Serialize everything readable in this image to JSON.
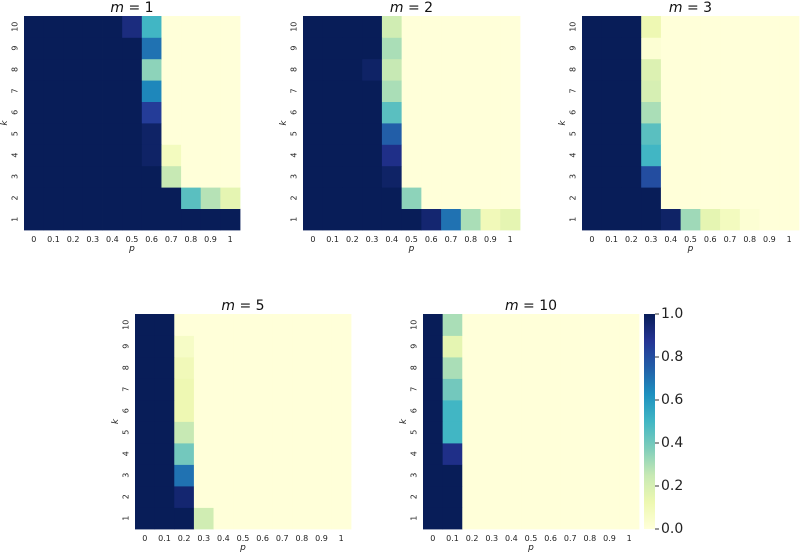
{
  "chart_data": [
    {
      "type": "heatmap",
      "title_var": "m",
      "title_op": " = ",
      "title_value": "1",
      "xlabel": "p",
      "ylabel": "k",
      "x_categories": [
        "0",
        "0.1",
        "0.2",
        "0.3",
        "0.4",
        "0.5",
        "0.6",
        "0.7",
        "0.8",
        "0.9",
        "1"
      ],
      "y_categories": [
        "1",
        "2",
        "3",
        "4",
        "5",
        "6",
        "7",
        "8",
        "9",
        "10"
      ],
      "values": [
        [
          1,
          1,
          1,
          1,
          1,
          1,
          1,
          1,
          1,
          1,
          1
        ],
        [
          1,
          1,
          1,
          1,
          1,
          1,
          1,
          1,
          0.45,
          0.28,
          0.15
        ],
        [
          1,
          1,
          1,
          1,
          1,
          1,
          1,
          0.25,
          0,
          0,
          0
        ],
        [
          1,
          1,
          1,
          1,
          1,
          1,
          0.97,
          0.08,
          0,
          0,
          0
        ],
        [
          1,
          1,
          1,
          1,
          1,
          1,
          0.97,
          0,
          0,
          0,
          0
        ],
        [
          1,
          1,
          1,
          1,
          1,
          1,
          0.85,
          0,
          0,
          0,
          0
        ],
        [
          1,
          1,
          1,
          1,
          1,
          1,
          0.65,
          0,
          0,
          0,
          0
        ],
        [
          1,
          1,
          1,
          1,
          1,
          1,
          0.35,
          0,
          0,
          0,
          0
        ],
        [
          1,
          1,
          1,
          1,
          1,
          1,
          0.7,
          0,
          0,
          0,
          0
        ],
        [
          1,
          1,
          1,
          1,
          1,
          0.92,
          0.5,
          0,
          0,
          0,
          0
        ]
      ]
    },
    {
      "type": "heatmap",
      "title_var": "m",
      "title_op": " = ",
      "title_value": "2",
      "xlabel": "p",
      "ylabel": "k",
      "x_categories": [
        "0",
        "0.1",
        "0.2",
        "0.3",
        "0.4",
        "0.5",
        "0.6",
        "0.7",
        "0.8",
        "0.9",
        "1"
      ],
      "y_categories": [
        "1",
        "2",
        "3",
        "4",
        "5",
        "6",
        "7",
        "8",
        "9",
        "10"
      ],
      "values": [
        [
          1,
          1,
          1,
          1,
          1,
          1,
          0.95,
          0.7,
          0.3,
          0.1,
          0.15
        ],
        [
          1,
          1,
          1,
          1,
          1,
          0.35,
          0,
          0,
          0,
          0,
          0
        ],
        [
          1,
          1,
          1,
          1,
          0.97,
          0,
          0,
          0,
          0,
          0,
          0
        ],
        [
          1,
          1,
          1,
          1,
          0.9,
          0,
          0,
          0,
          0,
          0,
          0
        ],
        [
          1,
          1,
          1,
          1,
          0.75,
          0,
          0,
          0,
          0,
          0,
          0
        ],
        [
          1,
          1,
          1,
          1,
          0.45,
          0,
          0,
          0,
          0,
          0,
          0
        ],
        [
          1,
          1,
          1,
          1,
          0.3,
          0,
          0,
          0,
          0,
          0,
          0
        ],
        [
          1,
          1,
          1,
          0.97,
          0.25,
          0,
          0,
          0,
          0,
          0,
          0
        ],
        [
          1,
          1,
          1,
          1,
          0.3,
          0,
          0,
          0,
          0,
          0,
          0
        ],
        [
          1,
          1,
          1,
          1,
          0.22,
          0,
          0,
          0,
          0,
          0,
          0
        ]
      ]
    },
    {
      "type": "heatmap",
      "title_var": "m",
      "title_op": " = ",
      "title_value": "3",
      "xlabel": "p",
      "ylabel": "k",
      "x_categories": [
        "0",
        "0.1",
        "0.2",
        "0.3",
        "0.4",
        "0.5",
        "0.6",
        "0.7",
        "0.8",
        "0.9",
        "1"
      ],
      "y_categories": [
        "1",
        "2",
        "3",
        "4",
        "5",
        "6",
        "7",
        "8",
        "9",
        "10"
      ],
      "values": [
        [
          1,
          1,
          1,
          1,
          0.97,
          0.32,
          0.15,
          0.08,
          0.02,
          0,
          0
        ],
        [
          1,
          1,
          1,
          1,
          0,
          0,
          0,
          0,
          0,
          0,
          0
        ],
        [
          1,
          1,
          1,
          0.8,
          0,
          0,
          0,
          0,
          0,
          0,
          0
        ],
        [
          1,
          1,
          1,
          0.5,
          0,
          0,
          0,
          0,
          0,
          0,
          0
        ],
        [
          1,
          1,
          1,
          0.45,
          0,
          0,
          0,
          0,
          0,
          0,
          0
        ],
        [
          1,
          1,
          1,
          0.3,
          0,
          0,
          0,
          0,
          0,
          0,
          0
        ],
        [
          1,
          1,
          1,
          0.2,
          0,
          0,
          0,
          0,
          0,
          0,
          0
        ],
        [
          1,
          1,
          1,
          0.18,
          0,
          0,
          0,
          0,
          0,
          0,
          0
        ],
        [
          1,
          1,
          1,
          0.02,
          0,
          0,
          0,
          0,
          0,
          0,
          0
        ],
        [
          1,
          1,
          1,
          0.12,
          0,
          0,
          0,
          0,
          0,
          0,
          0
        ]
      ]
    },
    {
      "type": "heatmap",
      "title_var": "m",
      "title_op": " = ",
      "title_value": "5",
      "xlabel": "p",
      "ylabel": "k",
      "x_categories": [
        "0",
        "0.1",
        "0.2",
        "0.3",
        "0.4",
        "0.5",
        "0.6",
        "0.7",
        "0.8",
        "0.9",
        "1"
      ],
      "y_categories": [
        "1",
        "2",
        "3",
        "4",
        "5",
        "6",
        "7",
        "8",
        "9",
        "10"
      ],
      "values": [
        [
          1,
          1,
          1,
          0.22,
          0,
          0,
          0,
          0,
          0,
          0,
          0
        ],
        [
          1,
          1,
          0.95,
          0,
          0,
          0,
          0,
          0,
          0,
          0,
          0
        ],
        [
          1,
          1,
          0.7,
          0,
          0,
          0,
          0,
          0,
          0,
          0,
          0
        ],
        [
          1,
          1,
          0.4,
          0,
          0,
          0,
          0,
          0,
          0,
          0,
          0
        ],
        [
          1,
          1,
          0.25,
          0,
          0,
          0,
          0,
          0,
          0,
          0,
          0
        ],
        [
          1,
          1,
          0.12,
          0,
          0,
          0,
          0,
          0,
          0,
          0,
          0
        ],
        [
          1,
          1,
          0.12,
          0,
          0,
          0,
          0,
          0,
          0,
          0,
          0
        ],
        [
          1,
          1,
          0.1,
          0,
          0,
          0,
          0,
          0,
          0,
          0,
          0
        ],
        [
          1,
          1,
          0.06,
          0,
          0,
          0,
          0,
          0,
          0,
          0,
          0
        ],
        [
          1,
          1,
          0,
          0,
          0,
          0,
          0,
          0,
          0,
          0,
          0
        ]
      ]
    },
    {
      "type": "heatmap",
      "title_var": "m",
      "title_op": " = ",
      "title_value": "10",
      "xlabel": "p",
      "ylabel": "k",
      "x_categories": [
        "0",
        "0.1",
        "0.2",
        "0.3",
        "0.4",
        "0.5",
        "0.6",
        "0.7",
        "0.8",
        "0.9",
        "1"
      ],
      "y_categories": [
        "1",
        "2",
        "3",
        "4",
        "5",
        "6",
        "7",
        "8",
        "9",
        "10"
      ],
      "values": [
        [
          1,
          1,
          0,
          0,
          0,
          0,
          0,
          0,
          0,
          0,
          0
        ],
        [
          1,
          1,
          0,
          0,
          0,
          0,
          0,
          0,
          0,
          0,
          0
        ],
        [
          1,
          1,
          0,
          0,
          0,
          0,
          0,
          0,
          0,
          0,
          0
        ],
        [
          1,
          0.9,
          0,
          0,
          0,
          0,
          0,
          0,
          0,
          0,
          0
        ],
        [
          1,
          0.5,
          0,
          0,
          0,
          0,
          0,
          0,
          0,
          0,
          0
        ],
        [
          1,
          0.5,
          0,
          0,
          0,
          0,
          0,
          0,
          0,
          0,
          0
        ],
        [
          1,
          0.4,
          0,
          0,
          0,
          0,
          0,
          0,
          0,
          0,
          0
        ],
        [
          1,
          0.3,
          0,
          0,
          0,
          0,
          0,
          0,
          0,
          0,
          0
        ],
        [
          1,
          0.15,
          0,
          0,
          0,
          0,
          0,
          0,
          0,
          0,
          0
        ],
        [
          1,
          0.3,
          0,
          0,
          0,
          0,
          0,
          0,
          0,
          0,
          0
        ]
      ]
    }
  ],
  "colorbar": {
    "colormap": "YlGnBu",
    "range": [
      0,
      1
    ],
    "ticks": [
      "0.0",
      "0.2",
      "0.4",
      "0.6",
      "0.8",
      "1.0"
    ],
    "colors": [
      "#ffffd9",
      "#edf8b1",
      "#c7e9b4",
      "#7fcdbb",
      "#41b6c4",
      "#1d91c0",
      "#225ea8",
      "#253494",
      "#081d58"
    ]
  }
}
